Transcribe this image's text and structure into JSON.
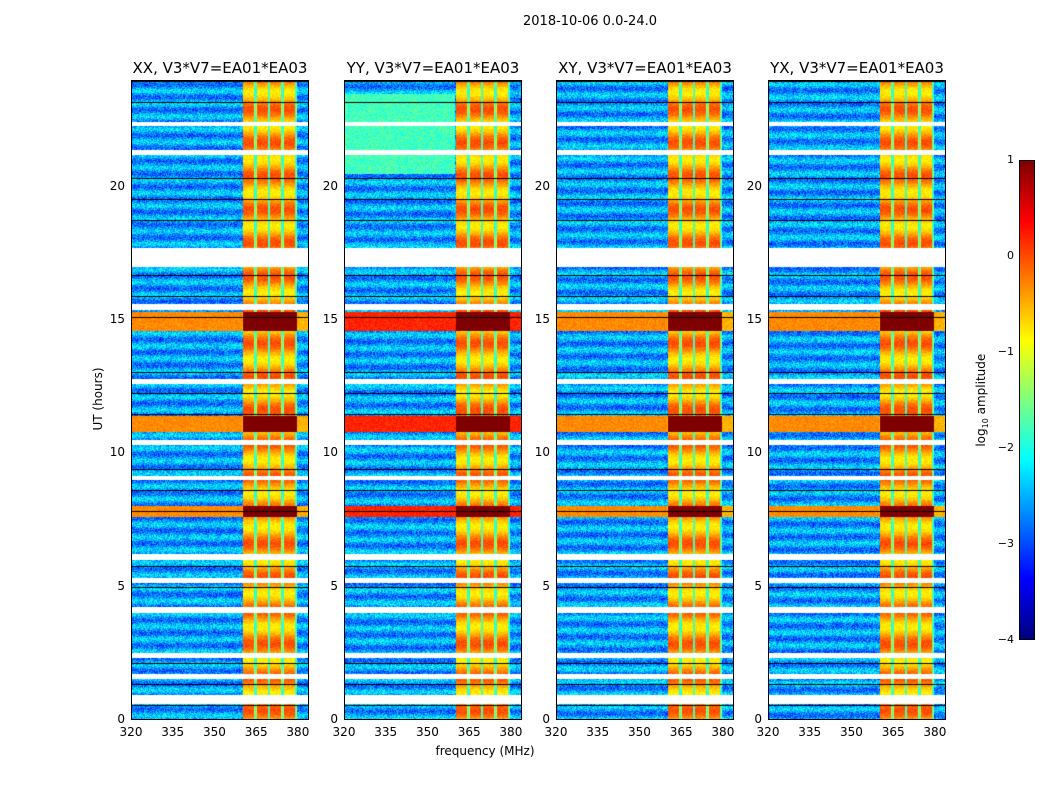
{
  "chart_data": {
    "type": "heatmap",
    "title": "2018-10-06 0.0-24.0",
    "xlabel": "frequency (MHz)",
    "ylabel": "UT (hours)",
    "xlim": [
      320,
      384
    ],
    "ylim": [
      0,
      24
    ],
    "xticks": [
      "320",
      "335",
      "350",
      "365",
      "380"
    ],
    "yticks": [
      "0",
      "5",
      "10",
      "15",
      "20"
    ],
    "panels": [
      {
        "title": "XX, V3*V7=EA01*EA03"
      },
      {
        "title": "YY, V3*V7=EA01*EA03"
      },
      {
        "title": "XY, V3*V7=EA01*EA03"
      },
      {
        "title": "YX, V3*V7=EA01*EA03"
      }
    ],
    "rfi_band_mhz": [
      360.5,
      380
    ],
    "no_data_hours": [
      [
        0.55,
        0.9
      ],
      [
        1.5,
        1.7
      ],
      [
        2.3,
        2.5
      ],
      [
        4.0,
        4.2
      ],
      [
        5.1,
        5.3
      ],
      [
        6.0,
        6.2
      ],
      [
        9.0,
        9.15
      ],
      [
        10.3,
        10.5
      ],
      [
        12.6,
        12.8
      ],
      [
        15.4,
        15.6
      ],
      [
        17.0,
        17.7
      ],
      [
        21.2,
        21.4
      ],
      [
        22.3,
        22.45
      ]
    ],
    "strong_rfi_hours": [
      [
        10.8,
        11.4
      ],
      [
        7.6,
        8.0
      ],
      [
        14.6,
        15.3
      ]
    ],
    "colorbar": {
      "label": "log10 amplitude",
      "label_main": "log",
      "label_sub": "10",
      "label_rest": " amplitude",
      "range": [
        -4,
        1
      ],
      "ticks": [
        "1",
        "0",
        "−1",
        "−2",
        "−3",
        "−4"
      ]
    }
  }
}
